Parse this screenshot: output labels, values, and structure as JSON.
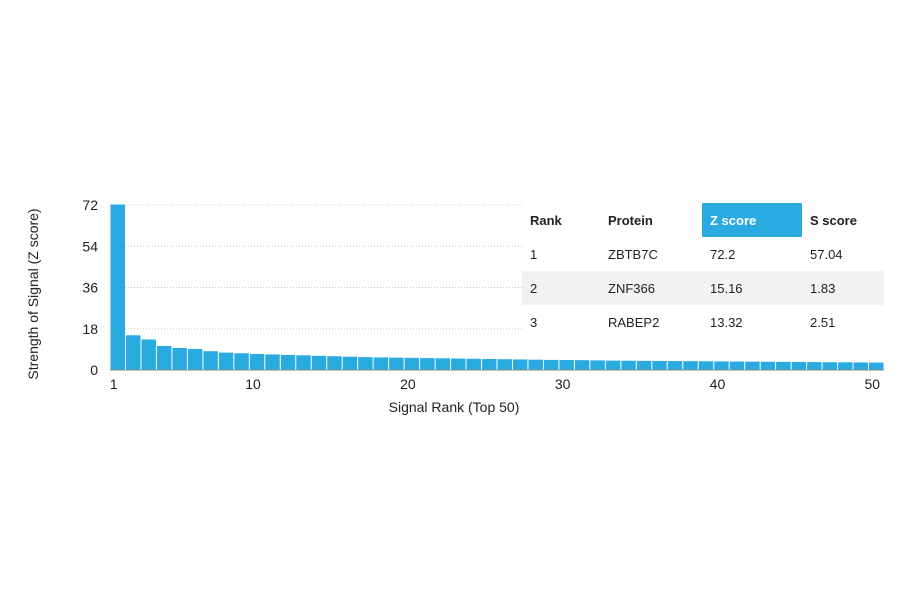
{
  "chart_data": {
    "type": "bar",
    "xlabel": "Signal Rank (Top 50)",
    "ylabel": "Strength of Signal (Z score)",
    "ylim": [
      0,
      72
    ],
    "yticks": [
      0,
      18,
      36,
      54,
      72
    ],
    "xticks": [
      1,
      10,
      20,
      30,
      40,
      50
    ],
    "bar_color": "#29abe2",
    "grid": "dotted horizontal",
    "ranks": [
      1,
      2,
      3,
      4,
      5,
      6,
      7,
      8,
      9,
      10,
      11,
      12,
      13,
      14,
      15,
      16,
      17,
      18,
      19,
      20,
      21,
      22,
      23,
      24,
      25,
      26,
      27,
      28,
      29,
      30,
      31,
      32,
      33,
      34,
      35,
      36,
      37,
      38,
      39,
      40,
      41,
      42,
      43,
      44,
      45,
      46,
      47,
      48,
      49,
      50
    ],
    "values": [
      72.2,
      15.16,
      13.32,
      10.5,
      9.6,
      9.2,
      8.2,
      7.6,
      7.3,
      7.0,
      6.8,
      6.6,
      6.4,
      6.2,
      6.0,
      5.8,
      5.6,
      5.5,
      5.4,
      5.3,
      5.2,
      5.1,
      5.0,
      4.9,
      4.8,
      4.7,
      4.6,
      4.5,
      4.4,
      4.35,
      4.3,
      4.2,
      4.1,
      4.05,
      4.0,
      3.95,
      3.9,
      3.85,
      3.8,
      3.75,
      3.7,
      3.65,
      3.6,
      3.55,
      3.5,
      3.45,
      3.4,
      3.35,
      3.3,
      3.25
    ]
  },
  "table": {
    "headers": [
      "Rank",
      "Protein",
      "Z score",
      "S score"
    ],
    "highlight_color": "#29abe2",
    "rows": [
      [
        "1",
        "ZBTB7C",
        "72.2",
        "57.04"
      ],
      [
        "2",
        "ZNF366",
        "15.16",
        "1.83"
      ],
      [
        "3",
        "RABEP2",
        "13.32",
        "2.51"
      ]
    ]
  }
}
